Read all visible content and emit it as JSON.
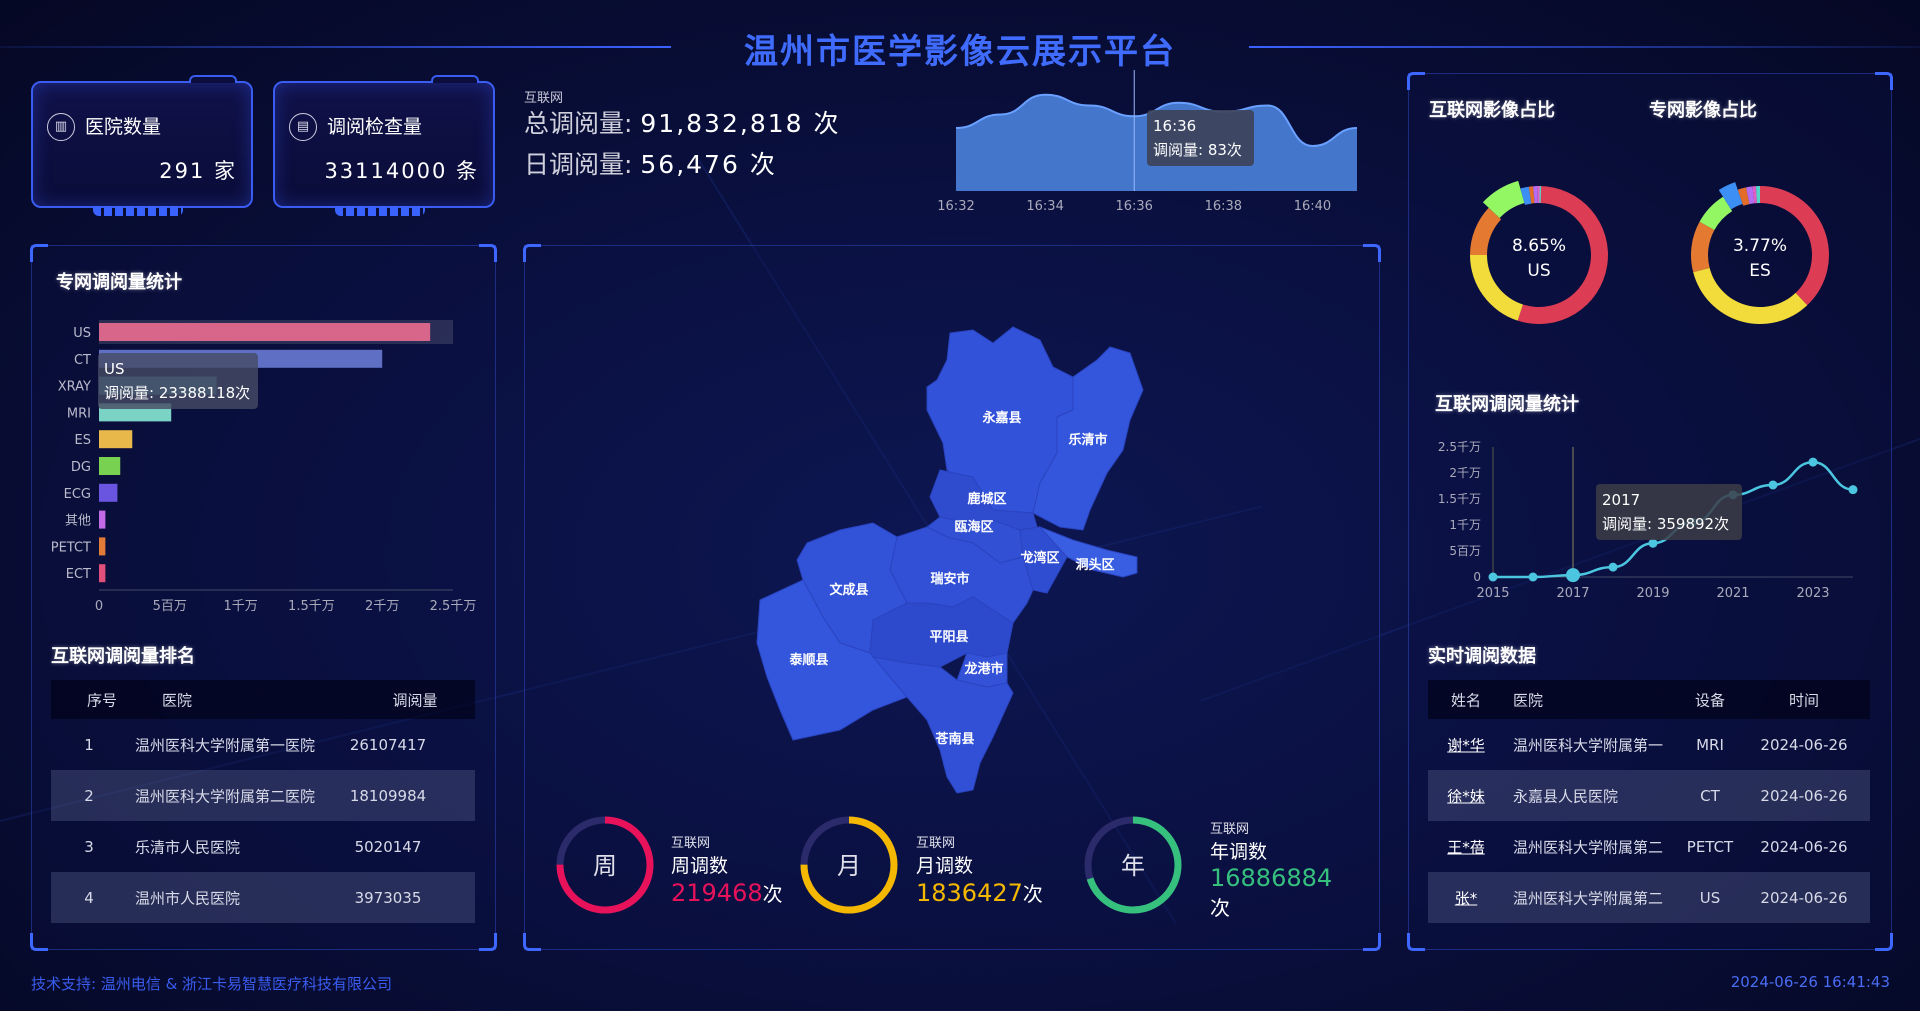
{
  "header": {
    "title": "温州市医学影像云展示平台"
  },
  "cards": [
    {
      "icon": "hospital-icon",
      "label": "医院数量",
      "value": "291 家"
    },
    {
      "icon": "document-icon",
      "label": "调阅检查量",
      "value": "33114000 条"
    }
  ],
  "summary": {
    "tag": "互联网",
    "total_label": "总调阅量:",
    "total_value": "91,832,818 次",
    "daily_label": "日调阅量:",
    "daily_value": "56,476 次"
  },
  "minute_chart": {
    "type": "area",
    "x": [
      "16:32",
      "16:33",
      "16:34",
      "16:35",
      "16:36",
      "16:37",
      "16:38",
      "16:39",
      "16:40",
      "16:41"
    ],
    "values": [
      70,
      85,
      107,
      95,
      83,
      98,
      88,
      95,
      50,
      70
    ],
    "x_tick_labels": [
      "16:32",
      "16:34",
      "16:36",
      "16:38",
      "16:40"
    ],
    "ylim": [
      0,
      120
    ],
    "color": "#4a7fd8",
    "tooltip": {
      "title": "16:36",
      "text": "调阅量: 83次"
    }
  },
  "left": {
    "bar_title": "专网调阅量统计",
    "ranking_title": "互联网调阅量排名",
    "ranking_headers": [
      "序号",
      "医院",
      "调阅量"
    ],
    "ranking_rows": [
      [
        "1",
        "温州医科大学附属第一医院",
        "26107417"
      ],
      [
        "2",
        "温州医科大学附属第二医院",
        "18109984"
      ],
      [
        "3",
        "乐清市人民医院",
        "5020147"
      ],
      [
        "4",
        "温州市人民医院",
        "3973035"
      ]
    ]
  },
  "chart_data": [
    {
      "type": "bar",
      "orientation": "horizontal",
      "categories": [
        "US",
        "CT",
        "XRAY",
        "MRI",
        "ES",
        "DG",
        "ECG",
        "其他",
        "PETCT",
        "ECT"
      ],
      "values": [
        23388118,
        20000000,
        8300000,
        5100000,
        2350000,
        1500000,
        1300000,
        450000,
        450000,
        450000
      ],
      "colors": [
        "#d7668a",
        "#5e6fc4",
        "#3f7b8a",
        "#7ad3c4",
        "#e8b84a",
        "#79d152",
        "#6a55e0",
        "#c46ae8",
        "#e27a38",
        "#e0507a"
      ],
      "xlim": [
        0,
        25000000
      ],
      "x_tick_labels": [
        "0",
        "5百万",
        "1千万",
        "1.5千万",
        "2千万",
        "2.5千万"
      ],
      "highlight": "US",
      "tooltip": {
        "title": "US",
        "text": "调阅量: 23388118次"
      }
    },
    {
      "type": "pie",
      "title": "互联网影像占比",
      "values": [
        0.55,
        0.2,
        0.12,
        0.0865,
        0.02,
        0.01,
        0.01,
        0.005,
        0.0035
      ],
      "colors": [
        "#dc3d55",
        "#f2dc3c",
        "#e47a32",
        "#93f764",
        "#3b8ff5",
        "#e26d2a",
        "#b46df0",
        "#e05ec8",
        "#53d6c8"
      ],
      "highlight_index": 3,
      "center_value": "8.65%",
      "center_label": "US"
    },
    {
      "type": "pie",
      "title": "专网影像占比",
      "values": [
        0.38,
        0.33,
        0.12,
        0.08,
        0.0377,
        0.02,
        0.015,
        0.008,
        0.0093
      ],
      "colors": [
        "#dc3d55",
        "#f2dc3c",
        "#e47a32",
        "#93f764",
        "#3b8ff5",
        "#e26d2a",
        "#b46df0",
        "#e05ec8",
        "#53d6c8"
      ],
      "highlight_index": 4,
      "center_value": "3.77%",
      "center_label": "ES"
    },
    {
      "type": "line",
      "title": "互联网调阅量统计",
      "x": [
        2015,
        2016,
        2017,
        2018,
        2019,
        2020,
        2021,
        2022,
        2023,
        2024
      ],
      "values": [
        0,
        0,
        359892,
        1900000,
        6500000,
        10500000,
        15800000,
        17700000,
        22100000,
        16800000
      ],
      "ylim": [
        0,
        25000000
      ],
      "xlim": [
        2015,
        2024
      ],
      "x_tick_labels": [
        "2015",
        "2017",
        "2019",
        "2021",
        "2023"
      ],
      "y_tick_labels": [
        "0",
        "5百万",
        "1千万",
        "1.5千万",
        "2千万",
        "2.5千万"
      ],
      "color": "#4cc6e0",
      "tooltip": {
        "title": "2017",
        "text": "调阅量: 359892次"
      }
    }
  ],
  "map": {
    "regions": [
      "永嘉县",
      "乐清市",
      "洞头区",
      "鹿城区",
      "瓯海区",
      "龙湾区",
      "瑞安市",
      "文成县",
      "平阳县",
      "龙港市",
      "泰顺县",
      "苍南县"
    ],
    "fill": "#3150d8"
  },
  "period_stats": [
    {
      "ring_label": "周",
      "tag": "互联网",
      "label": "周调数",
      "value": "219468",
      "unit": "次",
      "progress": 0.75,
      "color": "#e8125a"
    },
    {
      "ring_label": "月",
      "tag": "互联网",
      "label": "月调数",
      "value": "1836427",
      "unit": "次",
      "progress": 0.75,
      "color": "#f5b800"
    },
    {
      "ring_label": "年",
      "tag": "互联网",
      "label": "年调数",
      "value": "16886884",
      "unit": "次",
      "progress": 0.7,
      "color": "#36c07e"
    }
  ],
  "realtime": {
    "title": "实时调阅数据",
    "headers": [
      "姓名",
      "医院",
      "设备",
      "时间"
    ],
    "rows": [
      [
        "谢*华",
        "温州医科大学附属第一",
        "MRI",
        "2024-06-26"
      ],
      [
        "徐*妹",
        "永嘉县人民医院",
        "CT",
        "2024-06-26"
      ],
      [
        "王*蓓",
        "温州医科大学附属第二",
        "PETCT",
        "2024-06-26"
      ],
      [
        "张*",
        "温州医科大学附属第二",
        "US",
        "2024-06-26"
      ]
    ]
  },
  "footer": {
    "support": "技术支持: 温州电信 & 浙江卡易智慧医疗科技有限公司",
    "datetime": "2024-06-26 16:41:43"
  }
}
